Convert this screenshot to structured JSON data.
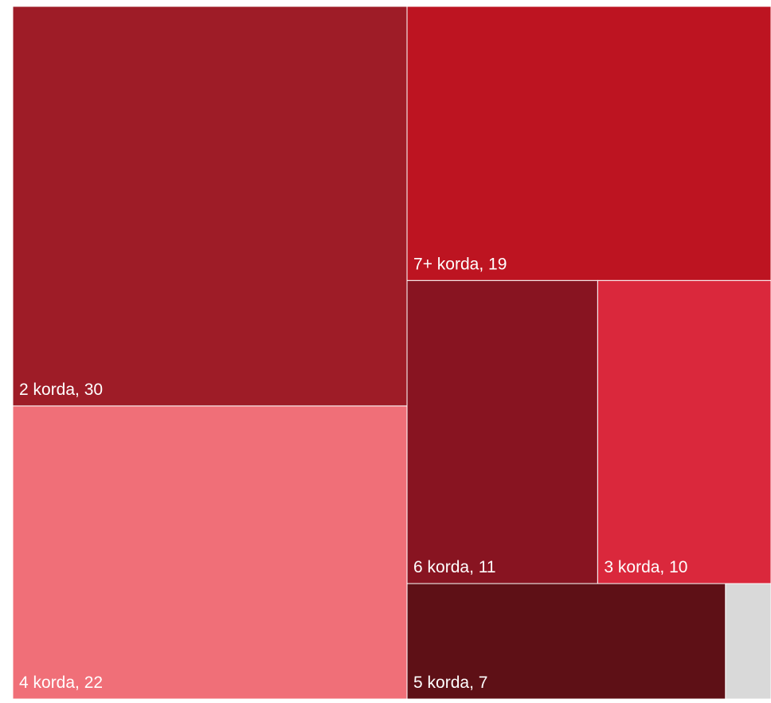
{
  "chart_data": {
    "type": "treemap",
    "values": [
      30,
      22,
      19,
      11,
      10,
      7,
      1
    ],
    "value_labels": [
      "2 korda, 30",
      "4 korda, 22",
      "7+ korda, 19",
      "6 korda, 11",
      "3 korda, 10",
      "5 korda, 7",
      null
    ],
    "colors": [
      "#9e1c27",
      "#f06f78",
      "#bd1421",
      "#881421",
      "#da283c",
      "#5e1016",
      "#d9d9d9"
    ]
  }
}
